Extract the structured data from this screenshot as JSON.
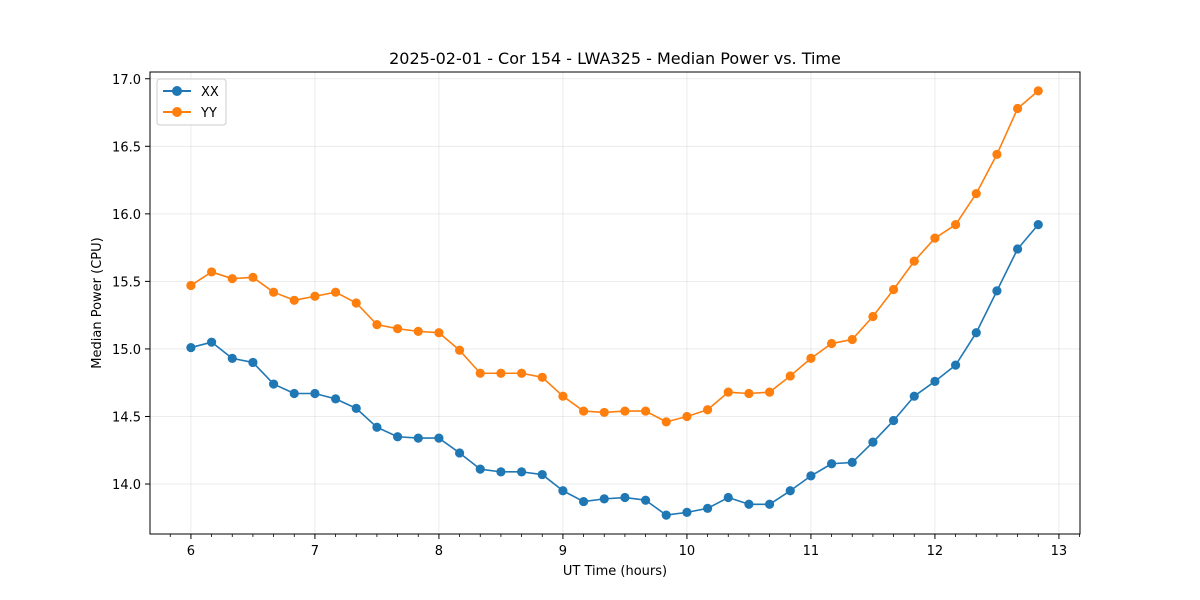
{
  "chart_data": {
    "type": "line",
    "title": "2025-02-01 - Cor 154 - LWA325 - Median Power vs. Time",
    "xlabel": "UT Time (hours)",
    "ylabel": "Median Power (CPU)",
    "xlim": [
      5.67,
      13.17
    ],
    "ylim": [
      13.63,
      17.05
    ],
    "xticks": [
      6,
      7,
      8,
      9,
      10,
      11,
      12,
      13
    ],
    "yticks": [
      14.0,
      14.5,
      15.0,
      15.5,
      16.0,
      16.5,
      17.0
    ],
    "ytick_labels": [
      "14.0",
      "14.5",
      "15.0",
      "15.5",
      "16.0",
      "16.5",
      "17.0"
    ],
    "grid": true,
    "legend_position": "top-left",
    "x": [
      6.0,
      6.1667,
      6.3333,
      6.5,
      6.6667,
      6.8333,
      7.0,
      7.1667,
      7.3333,
      7.5,
      7.6667,
      7.8333,
      8.0,
      8.1667,
      8.3333,
      8.5,
      8.6667,
      8.8333,
      9.0,
      9.1667,
      9.3333,
      9.5,
      9.6667,
      9.8333,
      10.0,
      10.1667,
      10.3333,
      10.5,
      10.6667,
      10.8333,
      11.0,
      11.1667,
      11.3333,
      11.5,
      11.6667,
      11.8333,
      12.0,
      12.1667,
      12.3333,
      12.5,
      12.6667,
      12.8333
    ],
    "series": [
      {
        "name": "XX",
        "color": "#1f77b4",
        "values": [
          15.01,
          15.05,
          14.93,
          14.9,
          14.74,
          14.67,
          14.67,
          14.63,
          14.56,
          14.42,
          14.35,
          14.34,
          14.34,
          14.23,
          14.11,
          14.09,
          14.09,
          14.07,
          13.95,
          13.87,
          13.89,
          13.9,
          13.88,
          13.77,
          13.79,
          13.82,
          13.9,
          13.85,
          13.85,
          13.95,
          14.06,
          14.15,
          14.16,
          14.31,
          14.47,
          14.65,
          14.76,
          14.88,
          15.12,
          15.43,
          15.74,
          15.92
        ]
      },
      {
        "name": "YY",
        "color": "#ff7f0e",
        "values": [
          15.47,
          15.57,
          15.52,
          15.53,
          15.42,
          15.36,
          15.39,
          15.42,
          15.34,
          15.18,
          15.15,
          15.13,
          15.12,
          14.99,
          14.82,
          14.82,
          14.82,
          14.79,
          14.65,
          14.54,
          14.53,
          14.54,
          14.54,
          14.46,
          14.5,
          14.55,
          14.68,
          14.67,
          14.68,
          14.8,
          14.93,
          15.04,
          15.07,
          15.24,
          15.44,
          15.65,
          15.82,
          15.92,
          16.15,
          16.44,
          16.78,
          16.91
        ]
      }
    ]
  }
}
